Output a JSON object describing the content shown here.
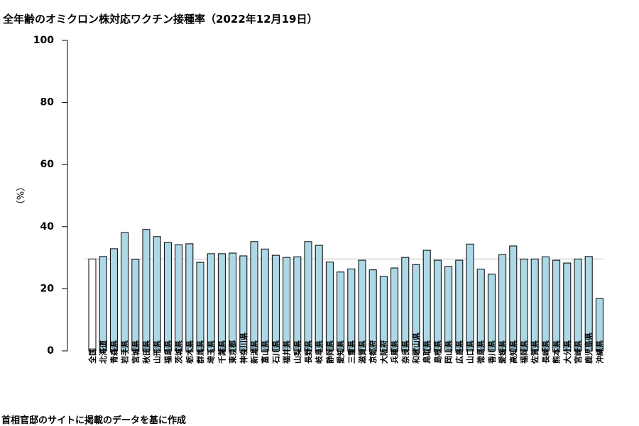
{
  "chart_data": {
    "type": "bar",
    "title": "全年齢のオミクロン株対応ワクチン接種率（2022年12月19日）",
    "ylabel": "（%）",
    "xlabel": "",
    "ylim": [
      0,
      100
    ],
    "yticks": [
      0,
      20,
      40,
      60,
      80,
      100
    ],
    "source": "首相官邸のサイトに掲載のデータを基に作成",
    "reference_line": 29.6,
    "categories": [
      "全国",
      "北海道",
      "青森県",
      "岩手県",
      "宮城県",
      "秋田県",
      "山形県",
      "福島県",
      "茨城県",
      "栃木県",
      "群馬県",
      "埼玉県",
      "千葉県",
      "東京都",
      "神奈川県",
      "新潟県",
      "富山県",
      "石川県",
      "福井県",
      "山梨県",
      "長野県",
      "岐阜県",
      "静岡県",
      "愛知県",
      "三重県",
      "滋賀県",
      "京都府",
      "大阪府",
      "兵庫県",
      "奈良県",
      "和歌山県",
      "鳥取県",
      "島根県",
      "岡山県",
      "広島県",
      "山口県",
      "徳島県",
      "香川県",
      "愛媛県",
      "高知県",
      "福岡県",
      "佐賀県",
      "長崎県",
      "熊本県",
      "大分県",
      "宮崎県",
      "鹿児島県",
      "沖縄県"
    ],
    "values": [
      29.6,
      30.4,
      32.9,
      38.1,
      29.5,
      39.1,
      36.8,
      34.9,
      34.2,
      34.5,
      28.5,
      31.3,
      31.3,
      31.5,
      30.6,
      35.2,
      32.8,
      30.8,
      30.1,
      30.3,
      35.2,
      34.0,
      28.6,
      25.4,
      26.4,
      29.2,
      26.1,
      24.0,
      26.7,
      30.1,
      27.8,
      32.4,
      29.2,
      27.2,
      29.2,
      34.4,
      26.3,
      24.7,
      31.0,
      33.8,
      29.6,
      29.6,
      30.3,
      29.2,
      28.3,
      29.6,
      30.4,
      16.9
    ],
    "colors": {
      "national": "#ffffff",
      "prefecture": "#add8e6",
      "border": "#000000",
      "reference_line": "#bebebe"
    },
    "grid": false,
    "legend": "none"
  }
}
